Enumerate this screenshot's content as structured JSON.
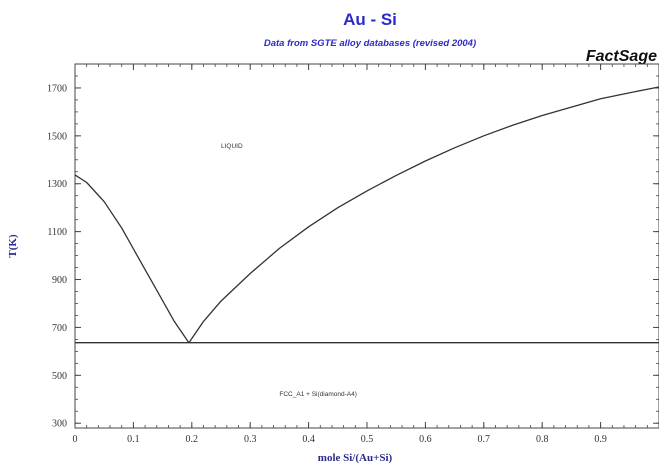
{
  "colors": {
    "title": "#2b2bc8",
    "axis_label": "#2b2b8c",
    "frame": "#444444",
    "curve": "#333333",
    "brand": "#111111"
  },
  "chart_data": {
    "type": "line",
    "title": "Au - Si",
    "subtitle": "Data from SGTE alloy databases (revised 2004)",
    "brand": "FactSage",
    "xlabel": "mole Si/(Au+Si)",
    "ylabel": "T(K)",
    "xlim": [
      0,
      1.0
    ],
    "ylim": [
      280,
      1800
    ],
    "x_ticks": [
      0,
      0.1,
      0.2,
      0.3,
      0.4,
      0.5,
      0.6,
      0.7,
      0.8,
      0.9
    ],
    "x_tick_labels": [
      "0",
      "0.1",
      "0.2",
      "0.3",
      "0.4",
      "0.5",
      "0.6",
      "0.7",
      "0.8",
      "0.9"
    ],
    "y_ticks": [
      300,
      500,
      700,
      900,
      1100,
      1300,
      1500,
      1700
    ],
    "y_tick_labels": [
      "300",
      "500",
      "700",
      "900",
      "1100",
      "1300",
      "1500",
      "1700"
    ],
    "grid": false,
    "regions": [
      {
        "label": "LIQUID",
        "x": 0.25,
        "y": 1450
      },
      {
        "label": "FCC_A1 + Si(diamond-A4)",
        "x": 0.35,
        "y": 413
      }
    ],
    "series": [
      {
        "x": [
          0,
          0.02,
          0.05,
          0.08,
          0.11,
          0.14,
          0.17,
          0.195
        ],
        "y": [
          1337,
          1305,
          1225,
          1115,
          985,
          855,
          725,
          636
        ]
      },
      {
        "x": [
          0.195,
          0.22,
          0.25,
          0.3,
          0.35,
          0.4,
          0.45,
          0.5,
          0.55,
          0.6,
          0.65,
          0.7,
          0.75,
          0.8,
          0.85,
          0.9,
          0.95,
          1.0
        ],
        "y": [
          636,
          725,
          810,
          925,
          1030,
          1120,
          1200,
          1270,
          1335,
          1395,
          1450,
          1500,
          1545,
          1585,
          1620,
          1655,
          1680,
          1704
        ]
      },
      {
        "x": [
          0,
          1.0
        ],
        "y": [
          636,
          636
        ]
      }
    ]
  }
}
